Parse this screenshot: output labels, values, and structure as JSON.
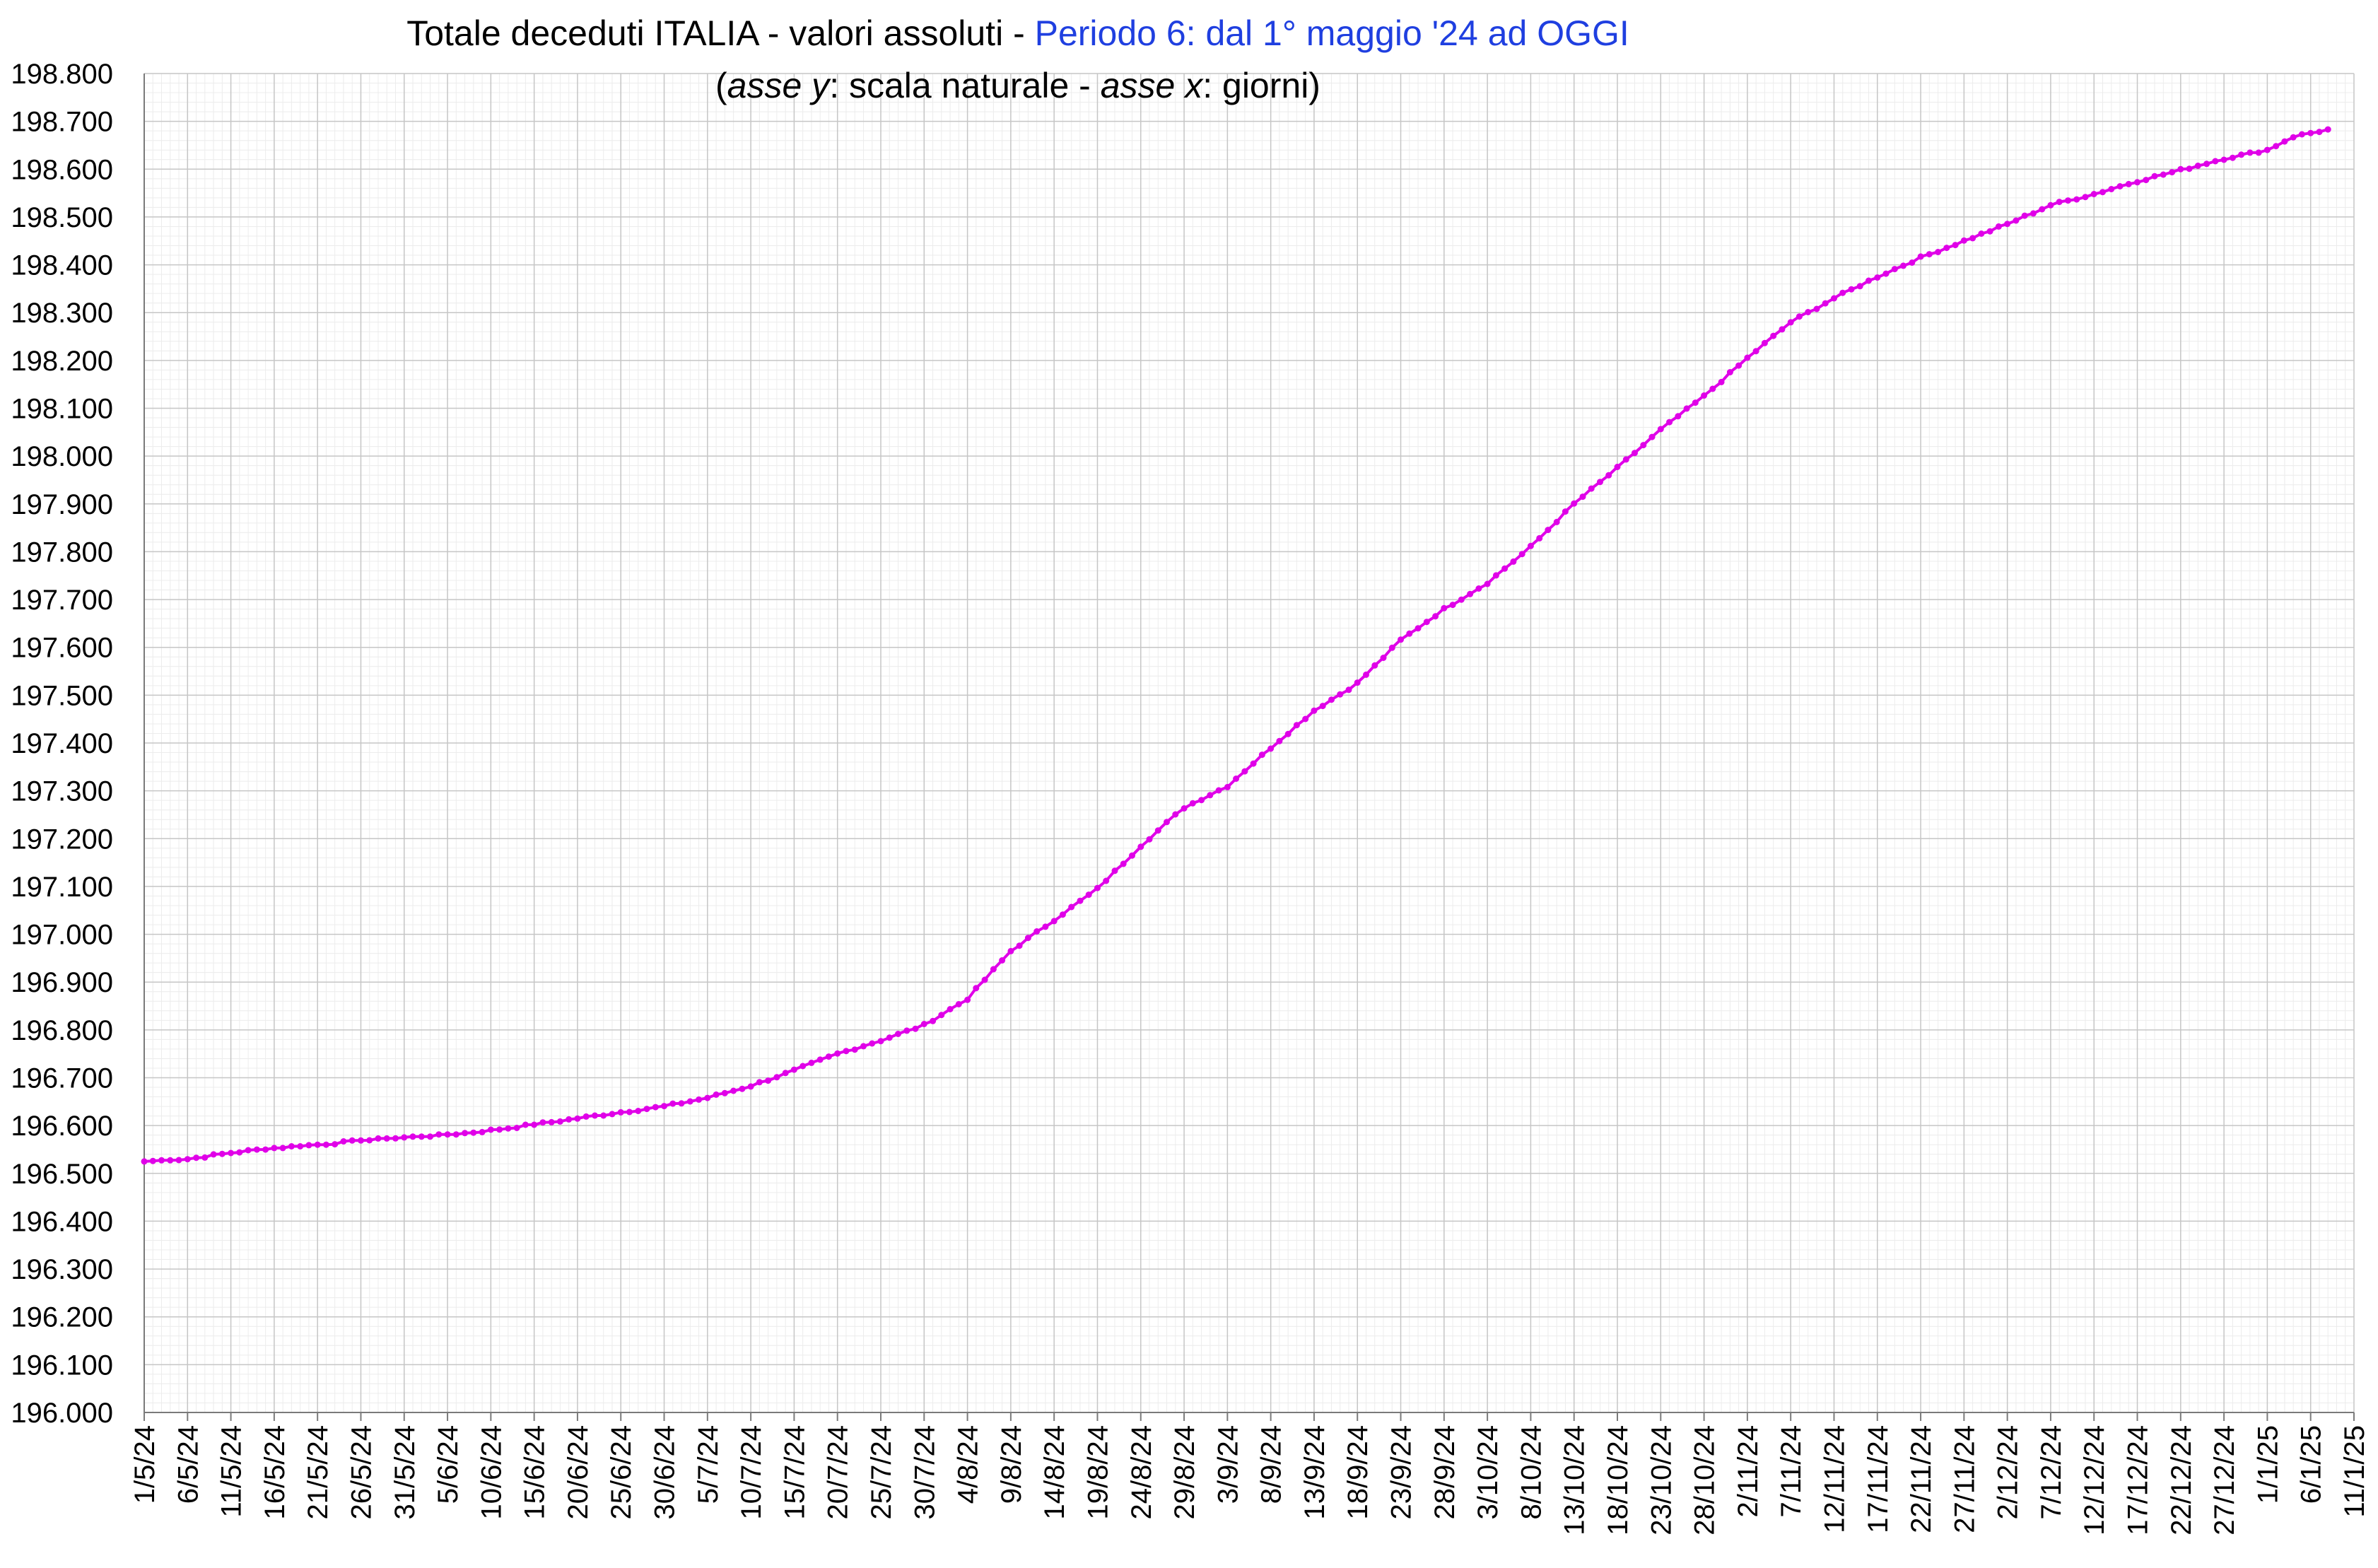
{
  "chart_data": {
    "type": "line",
    "title": {
      "part1": "Totale deceduti ITALIA - valori assoluti - ",
      "part2": "Periodo 6: dal 1° maggio '24 ad OGGI"
    },
    "subtitle": {
      "paren_open": "(",
      "y_axis_word": "asse y",
      "y_text": ": scala naturale - ",
      "x_axis_word": "asse x",
      "x_text": ":  giorni)"
    },
    "xlabel": "",
    "ylabel": "",
    "grid": true,
    "minor_grid": true,
    "legend": "none",
    "line_color": "#e000e8",
    "x_start_date": "2024-05-01",
    "ylim": [
      196000,
      198800
    ],
    "ytick_step": 100,
    "yticks": [
      "196.000",
      "196.100",
      "196.200",
      "196.300",
      "196.400",
      "196.500",
      "196.600",
      "196.700",
      "196.800",
      "196.900",
      "197.000",
      "197.100",
      "197.200",
      "197.300",
      "197.400",
      "197.500",
      "197.600",
      "197.700",
      "197.800",
      "197.900",
      "198.000",
      "198.100",
      "198.200",
      "198.300",
      "198.400",
      "198.500",
      "198.600",
      "198.700",
      "198.800"
    ],
    "xticks": [
      "1/5/24",
      "6/5/24",
      "11/5/24",
      "16/5/24",
      "21/5/24",
      "26/5/24",
      "31/5/24",
      "5/6/24",
      "10/6/24",
      "15/6/24",
      "20/6/24",
      "25/6/24",
      "30/6/24",
      "5/7/24",
      "10/7/24",
      "15/7/24",
      "20/7/24",
      "25/7/24",
      "30/7/24",
      "4/8/24",
      "9/8/24",
      "14/8/24",
      "19/8/24",
      "24/8/24",
      "29/8/24",
      "3/9/24",
      "8/9/24",
      "13/9/24",
      "18/9/24",
      "23/9/24",
      "28/9/24",
      "3/10/24",
      "8/10/24",
      "13/10/24",
      "18/10/24",
      "23/10/24",
      "28/10/24",
      "2/11/24",
      "7/11/24",
      "12/11/24",
      "17/11/24",
      "22/11/24",
      "27/11/24",
      "2/12/24",
      "7/12/24",
      "12/12/24",
      "17/12/24",
      "22/12/24",
      "27/12/24",
      "1/1/25",
      "6/1/25",
      "11/1/25"
    ],
    "series": [
      {
        "values": [
          {
            "x": "1/5/24",
            "y": 196525
          },
          {
            "x": "6/5/24",
            "y": 196530
          },
          {
            "x": "11/5/24",
            "y": 196543
          },
          {
            "x": "16/5/24",
            "y": 196553
          },
          {
            "x": "21/5/24",
            "y": 196560
          },
          {
            "x": "26/5/24",
            "y": 196568
          },
          {
            "x": "31/5/24",
            "y": 196575
          },
          {
            "x": "5/6/24",
            "y": 196580
          },
          {
            "x": "10/6/24",
            "y": 196590
          },
          {
            "x": "15/6/24",
            "y": 196602
          },
          {
            "x": "20/6/24",
            "y": 196615
          },
          {
            "x": "25/6/24",
            "y": 196628
          },
          {
            "x": "30/6/24",
            "y": 196640
          },
          {
            "x": "5/7/24",
            "y": 196658
          },
          {
            "x": "10/7/24",
            "y": 196683
          },
          {
            "x": "15/7/24",
            "y": 196715
          },
          {
            "x": "20/7/24",
            "y": 196750
          },
          {
            "x": "25/7/24",
            "y": 196778
          },
          {
            "x": "30/7/24",
            "y": 196810
          },
          {
            "x": "4/8/24",
            "y": 196865
          },
          {
            "x": "9/8/24",
            "y": 196965
          },
          {
            "x": "14/8/24",
            "y": 197030
          },
          {
            "x": "19/8/24",
            "y": 197095
          },
          {
            "x": "24/8/24",
            "y": 197185
          },
          {
            "x": "29/8/24",
            "y": 197265
          },
          {
            "x": "3/9/24",
            "y": 197310
          },
          {
            "x": "8/9/24",
            "y": 197390
          },
          {
            "x": "13/9/24",
            "y": 197468
          },
          {
            "x": "18/9/24",
            "y": 197525
          },
          {
            "x": "23/9/24",
            "y": 197615
          },
          {
            "x": "28/9/24",
            "y": 197680
          },
          {
            "x": "3/10/24",
            "y": 197735
          },
          {
            "x": "8/10/24",
            "y": 197810
          },
          {
            "x": "13/10/24",
            "y": 197900
          },
          {
            "x": "18/10/24",
            "y": 197975
          },
          {
            "x": "23/10/24",
            "y": 198055
          },
          {
            "x": "28/10/24",
            "y": 198125
          },
          {
            "x": "2/11/24",
            "y": 198205
          },
          {
            "x": "7/11/24",
            "y": 198280
          },
          {
            "x": "12/11/24",
            "y": 198330
          },
          {
            "x": "17/11/24",
            "y": 198375
          },
          {
            "x": "22/11/24",
            "y": 198415
          },
          {
            "x": "27/11/24",
            "y": 198450
          },
          {
            "x": "2/12/24",
            "y": 198485
          },
          {
            "x": "7/12/24",
            "y": 198525
          },
          {
            "x": "12/12/24",
            "y": 198548
          },
          {
            "x": "17/12/24",
            "y": 198575
          },
          {
            "x": "22/12/24",
            "y": 198598
          },
          {
            "x": "27/12/24",
            "y": 198622
          },
          {
            "x": "1/1/25",
            "y": 198640
          },
          {
            "x": "4/1/25",
            "y": 198668
          },
          {
            "x": "8/1/25",
            "y": 198683
          }
        ]
      }
    ]
  }
}
